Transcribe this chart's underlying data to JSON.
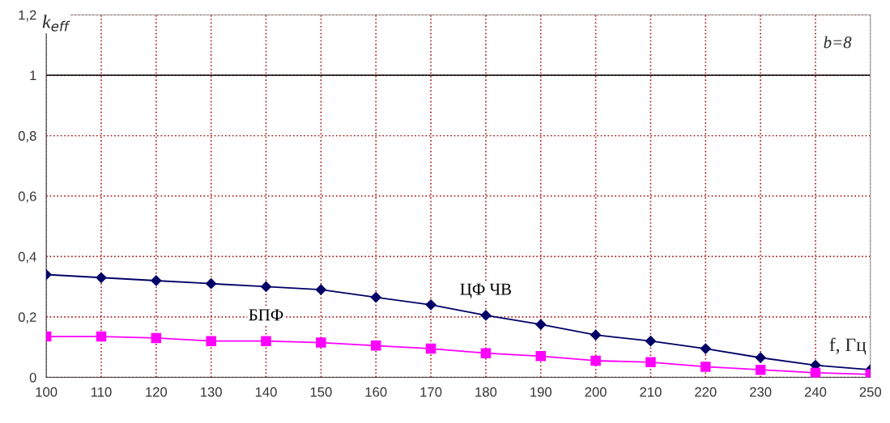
{
  "chart_data": {
    "type": "line",
    "ylabel": "k$_{eff}$",
    "xlabel": "f, Гц",
    "x": [
      100,
      110,
      120,
      130,
      140,
      150,
      160,
      170,
      180,
      190,
      200,
      210,
      220,
      230,
      240,
      250
    ],
    "series": [
      {
        "name": "ЦФ ЧВ",
        "color": "#000066",
        "marker": "diamond",
        "values": [
          0.34,
          0.33,
          0.32,
          0.31,
          0.3,
          0.29,
          0.265,
          0.24,
          0.205,
          0.175,
          0.14,
          0.12,
          0.095,
          0.065,
          0.04,
          0.025
        ]
      },
      {
        "name": "БПФ",
        "color": "#ff00ff",
        "marker": "square",
        "values": [
          0.135,
          0.135,
          0.13,
          0.12,
          0.12,
          0.115,
          0.105,
          0.095,
          0.08,
          0.07,
          0.055,
          0.05,
          0.035,
          0.025,
          0.015,
          0.01
        ]
      }
    ],
    "annotations": [
      "b=8"
    ],
    "xlim": [
      100,
      250
    ],
    "xticks": [
      100,
      110,
      120,
      130,
      140,
      150,
      160,
      170,
      180,
      190,
      200,
      210,
      220,
      230,
      240,
      250
    ],
    "ylim": [
      0,
      1.2
    ],
    "yticks": [
      {
        "value": 0,
        "label": "0"
      },
      {
        "value": 0.2,
        "label": "0,2"
      },
      {
        "value": 0.4,
        "label": "0,4"
      },
      {
        "value": 0.6,
        "label": "0,6"
      },
      {
        "value": 0.8,
        "label": "0,8"
      },
      {
        "value": 1,
        "label": "1"
      },
      {
        "value": 1.2,
        "label": "1,2"
      }
    ],
    "ref_lines": [
      {
        "axis": "y",
        "value": 1,
        "color": "#000000",
        "line_style": "solid"
      }
    ],
    "grid": true,
    "legend": false
  }
}
